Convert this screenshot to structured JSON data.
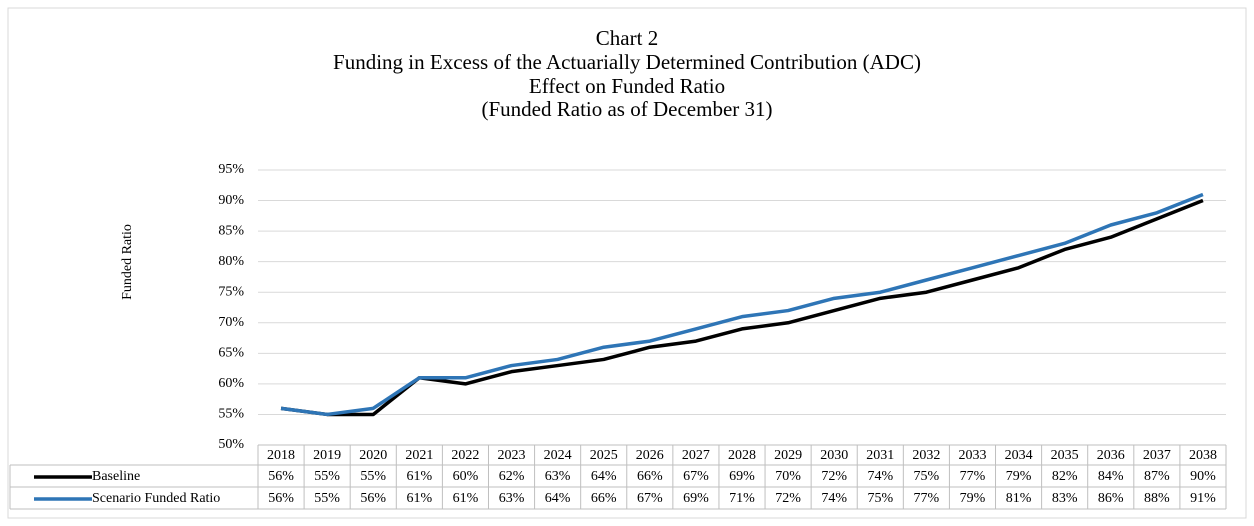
{
  "chart_data": {
    "type": "line",
    "title": "Chart 2",
    "subtitle": [
      "Funding in Excess of the Actuarially Determined Contribution (ADC)",
      "Effect on Funded Ratio",
      "(Funded Ratio as of December 31)"
    ],
    "y_label": "Funded Ratio",
    "categories": [
      "2018",
      "2019",
      "2020",
      "2021",
      "2022",
      "2023",
      "2024",
      "2025",
      "2026",
      "2027",
      "2028",
      "2029",
      "2030",
      "2031",
      "2032",
      "2033",
      "2034",
      "2035",
      "2036",
      "2037",
      "2038"
    ],
    "series": [
      {
        "name": "Baseline",
        "color": "#000000",
        "values": [
          56,
          55,
          55,
          61,
          60,
          62,
          63,
          64,
          66,
          67,
          69,
          70,
          72,
          74,
          75,
          77,
          79,
          82,
          84,
          87,
          90
        ],
        "value_labels": [
          "56%",
          "55%",
          "55%",
          "61%",
          "60%",
          "62%",
          "63%",
          "64%",
          "66%",
          "67%",
          "69%",
          "70%",
          "72%",
          "74%",
          "75%",
          "77%",
          "79%",
          "82%",
          "84%",
          "87%",
          "90%"
        ]
      },
      {
        "name": "Scenario Funded Ratio",
        "color": "#2e75b6",
        "values": [
          56,
          55,
          56,
          61,
          61,
          63,
          64,
          66,
          67,
          69,
          71,
          72,
          74,
          75,
          77,
          79,
          81,
          83,
          86,
          88,
          91
        ],
        "value_labels": [
          "56%",
          "55%",
          "56%",
          "61%",
          "61%",
          "63%",
          "64%",
          "66%",
          "67%",
          "69%",
          "71%",
          "72%",
          "74%",
          "75%",
          "77%",
          "79%",
          "81%",
          "83%",
          "86%",
          "88%",
          "91%"
        ]
      }
    ],
    "ylim": [
      50,
      95
    ],
    "yticks": [
      {
        "value": 50,
        "label": "50%"
      },
      {
        "value": 55,
        "label": "55%"
      },
      {
        "value": 60,
        "label": "60%"
      },
      {
        "value": 65,
        "label": "65%"
      },
      {
        "value": 70,
        "label": "70%"
      },
      {
        "value": 75,
        "label": "75%"
      },
      {
        "value": 80,
        "label": "80%"
      },
      {
        "value": 85,
        "label": "85%"
      },
      {
        "value": 90,
        "label": "90%"
      },
      {
        "value": 95,
        "label": "95%"
      }
    ],
    "grid": true
  }
}
